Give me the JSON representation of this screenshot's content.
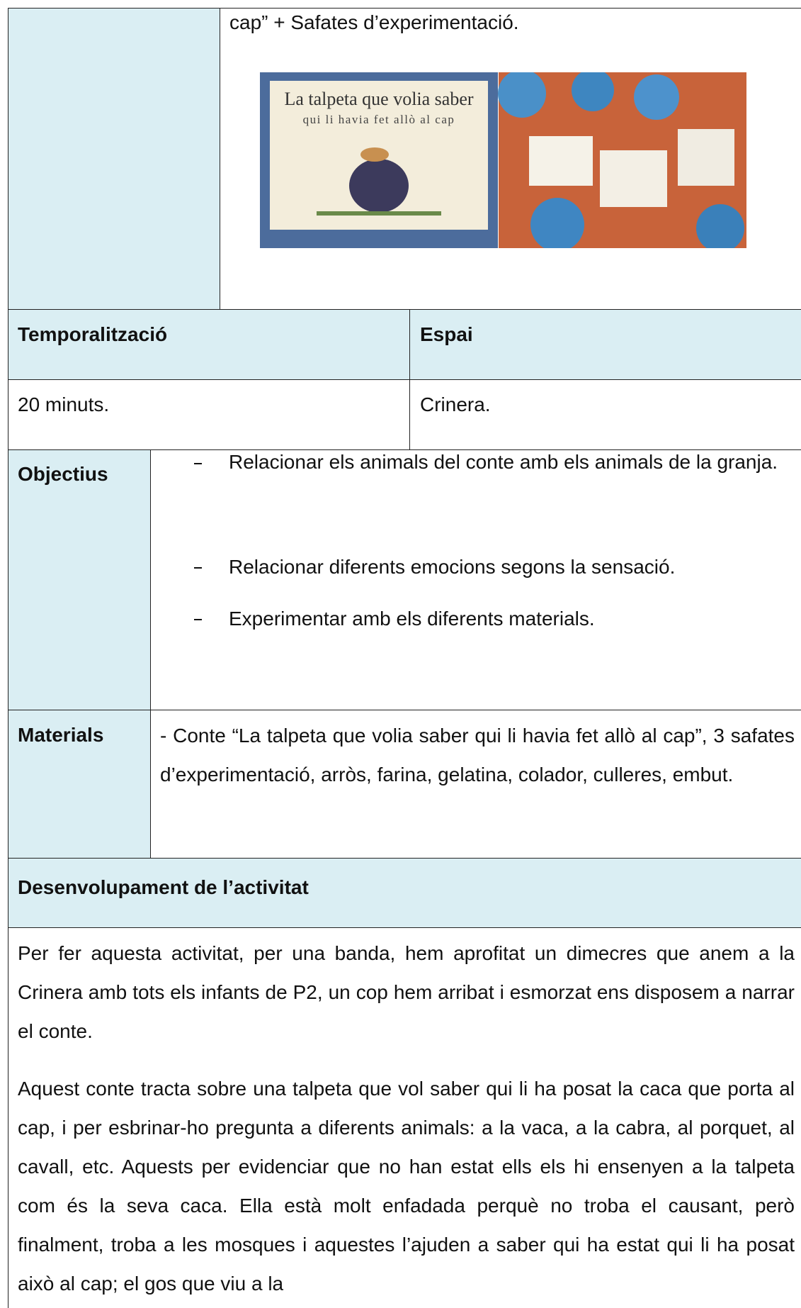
{
  "intro": {
    "text": "cap” + Safates d’experimentació.",
    "cover_title": "La talpeta que volia saber",
    "cover_subtitle": "qui li havia fet allò al cap"
  },
  "schedule": {
    "headers": [
      "Temporalització",
      "Espai"
    ],
    "values": [
      "20 minuts.",
      "Crinera."
    ]
  },
  "objectives": {
    "label": "Objectius",
    "items": [
      "Relacionar els animals del conte amb els animals de la granja.",
      "Relacionar diferents emocions segons la sensació.",
      "Experimentar amb els diferents materials."
    ]
  },
  "materials": {
    "label": "Materials",
    "text": "- Conte “La talpeta que volia saber qui li havia fet allò al cap”, 3 safates d’experimentació, arròs, farina, gelatina, colador, culleres, embut."
  },
  "development": {
    "label": "Desenvolupament de l’activitat",
    "paragraphs": [
      "Per fer aquesta activitat, per una banda, hem aprofitat un dimecres que anem a la Crinera amb tots els infants de P2, un cop hem arribat i esmorzat ens disposem a narrar el conte.",
      "Aquest conte tracta sobre una talpeta que vol saber qui li ha posat la caca que porta al cap, i per esbrinar-ho pregunta a diferents animals: a la vaca, a la cabra, al porquet, al cavall, etc. Aquests per evidenciar que no han estat ells els hi ensenyen a la talpeta com és la seva caca. Ella està molt enfadada perquè no troba el causant, però finalment, troba a les mosques i aquestes l’ajuden a saber qui ha estat qui li ha posat això al cap; el gos que viu a la"
    ]
  }
}
